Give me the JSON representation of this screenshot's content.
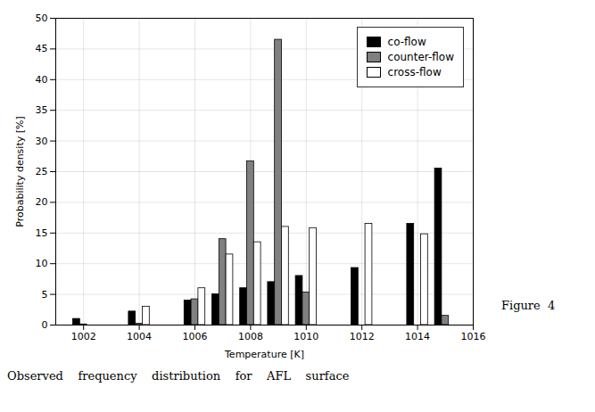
{
  "chart_data": {
    "type": "bar",
    "xlabel": "Temperature [K]",
    "ylabel": "Probability density [%]",
    "x": [
      1002,
      1004,
      1006,
      1007,
      1008,
      1009,
      1010,
      1012,
      1014,
      1015
    ],
    "series": [
      {
        "name": "co-flow",
        "color": "#000000",
        "values": [
          1.0,
          2.2,
          4.0,
          5.0,
          6.0,
          7.0,
          8.0,
          9.3,
          16.5,
          25.5
        ]
      },
      {
        "name": "counter-flow",
        "color": "#808080",
        "values": [
          0.1,
          0.2,
          4.2,
          14.0,
          26.7,
          46.5,
          5.3,
          0.0,
          0.0,
          1.5
        ]
      },
      {
        "name": "cross-flow",
        "color": "#ffffff",
        "values": [
          0.0,
          3.0,
          6.0,
          11.5,
          13.5,
          16.0,
          15.8,
          16.5,
          14.8,
          0.0
        ]
      }
    ],
    "xlim": [
      1001,
      1016
    ],
    "ylim": [
      0,
      50
    ],
    "xticks": [
      1002,
      1004,
      1006,
      1008,
      1010,
      1012,
      1014,
      1016
    ],
    "yticks": [
      0,
      5,
      10,
      15,
      20,
      25,
      30,
      35,
      40,
      45,
      50
    ],
    "grid": true,
    "legend": "upper right",
    "annotations": [
      "Figure  4",
      "Observed    frequency    distribution    for    AFL    surface"
    ]
  }
}
